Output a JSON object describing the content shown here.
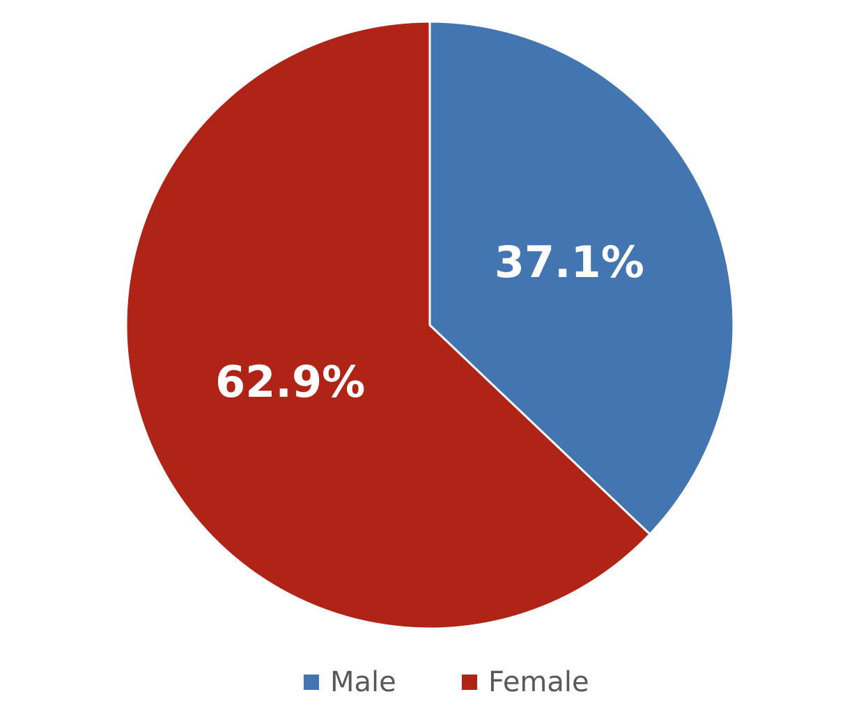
{
  "chart_data": {
    "type": "pie",
    "categories": [
      "Male",
      "Female"
    ],
    "values": [
      37.1,
      62.9
    ],
    "value_labels": [
      "37.1%",
      "62.9%"
    ],
    "colors": [
      "#4375b0",
      "#b02418"
    ],
    "legend": "bottom"
  }
}
